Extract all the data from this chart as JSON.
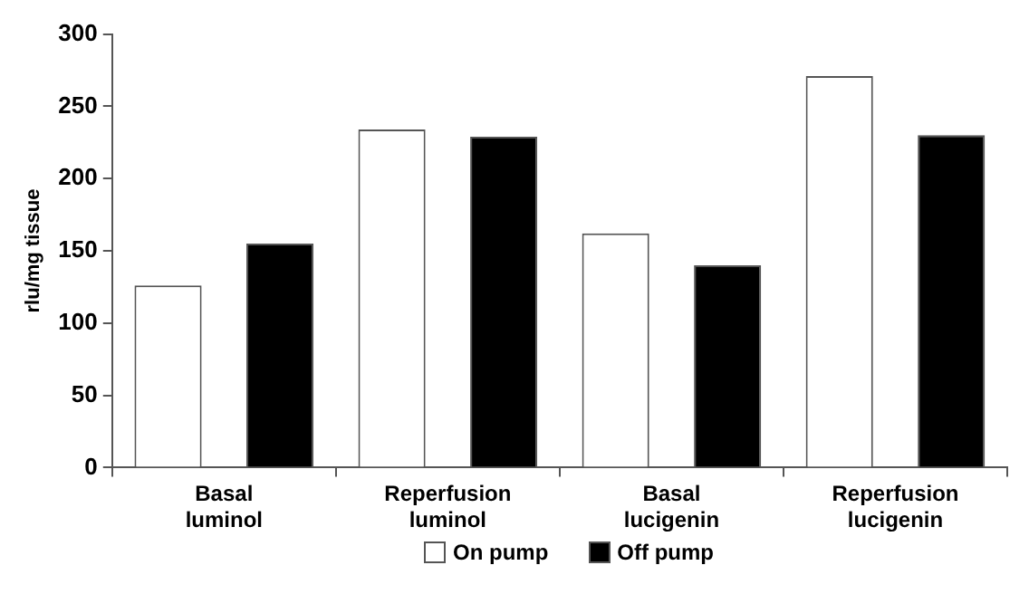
{
  "chart_data": {
    "type": "bar",
    "ylabel": "rlu/mg tissue",
    "categories": [
      "Basal luminol",
      "Reperfusion luminol",
      "Basal lucigenin",
      "Reperfusion lucigenin"
    ],
    "series": [
      {
        "name": "On pump",
        "color": "#ffffff",
        "values": [
          126,
          234,
          162,
          271
        ]
      },
      {
        "name": "Off pump",
        "color": "#000000",
        "values": [
          155,
          229,
          140,
          230
        ]
      }
    ],
    "ylim": [
      0,
      300
    ],
    "yticks": [
      0,
      50,
      100,
      150,
      200,
      250,
      300
    ],
    "grid": false,
    "legend": "bottom"
  }
}
